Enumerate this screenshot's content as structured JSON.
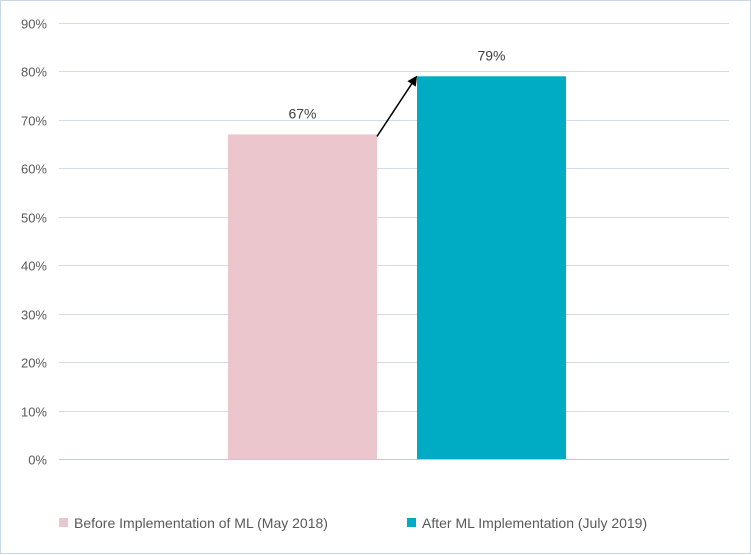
{
  "chart_data": {
    "type": "bar",
    "title": "",
    "xlabel": "",
    "ylabel": "",
    "ylim": [
      0,
      90
    ],
    "yticks": [
      0,
      10,
      20,
      30,
      40,
      50,
      60,
      70,
      80,
      90
    ],
    "ytick_labels": [
      "0%",
      "10%",
      "20%",
      "30%",
      "40%",
      "50%",
      "60%",
      "70%",
      "80%",
      "90%"
    ],
    "grid": true,
    "legend_position": "bottom",
    "series": [
      {
        "name": "Before Implementation of ML (May 2018)",
        "value": 67,
        "label": "67%",
        "color": "#ebc6cc"
      },
      {
        "name": "After ML Implementation (July 2019)",
        "value": 79,
        "label": "79%",
        "color": "#00acc3"
      }
    ],
    "annotation": "arrow from the top of the first bar to the top of the second bar",
    "arrow_color": "#000000"
  }
}
